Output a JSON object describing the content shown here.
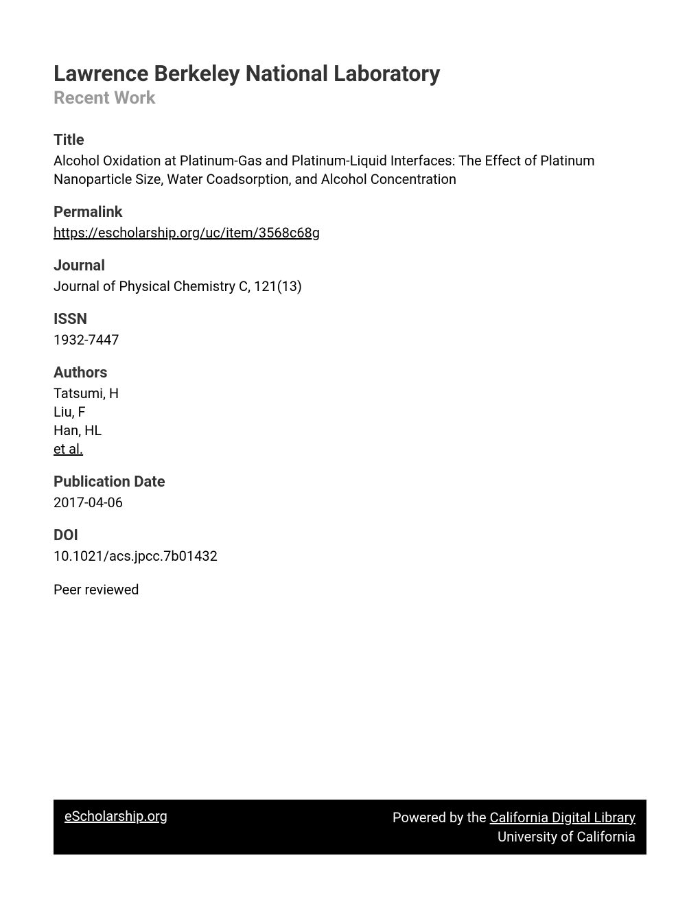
{
  "header": {
    "institution": "Lawrence Berkeley National Laboratory",
    "subtitle": "Recent Work"
  },
  "sections": {
    "title": {
      "label": "Title",
      "value": "Alcohol Oxidation at Platinum-Gas and Platinum-Liquid Interfaces: The Effect of Platinum Nanoparticle Size, Water Coadsorption, and Alcohol Concentration"
    },
    "permalink": {
      "label": "Permalink",
      "value": "https://escholarship.org/uc/item/3568c68g"
    },
    "journal": {
      "label": "Journal",
      "value": "Journal of Physical Chemistry C, 121(13)"
    },
    "issn": {
      "label": "ISSN",
      "value": "1932-7447"
    },
    "authors": {
      "label": "Authors",
      "list": [
        "Tatsumi, H",
        "Liu, F",
        "Han, HL"
      ],
      "more": "et al."
    },
    "pubdate": {
      "label": "Publication Date",
      "value": "2017-04-06"
    },
    "doi": {
      "label": "DOI",
      "value": "10.1021/acs.jpcc.7b01432"
    },
    "peer": "Peer reviewed"
  },
  "footer": {
    "left": "eScholarship.org",
    "poweredBy": "Powered by the ",
    "library": "California Digital Library",
    "university": "University of California"
  }
}
